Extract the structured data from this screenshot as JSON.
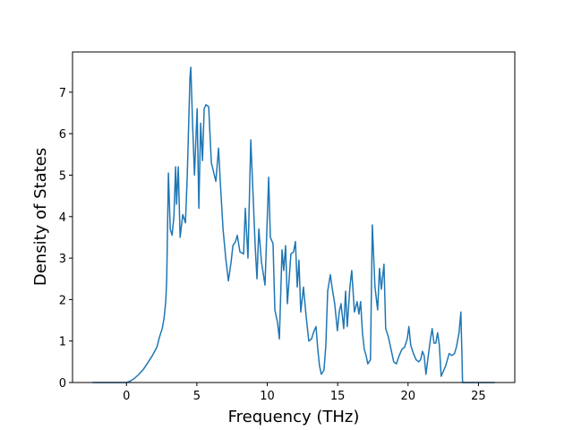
{
  "chart_data": {
    "type": "line",
    "xlabel": "Frequency (THz)",
    "ylabel": "Density of States",
    "x": [
      -2.41,
      0,
      0.25,
      0.57,
      0.89,
      1.21,
      1.52,
      1.84,
      2.16,
      2.35,
      2.54,
      2.67,
      2.79,
      2.86,
      2.98,
      3.11,
      3.24,
      3.37,
      3.49,
      3.56,
      3.68,
      3.81,
      4.0,
      4.19,
      4.32,
      4.51,
      4.57,
      4.7,
      4.83,
      5.02,
      5.14,
      5.27,
      5.4,
      5.52,
      5.65,
      5.84,
      6.03,
      6.1,
      6.35,
      6.54,
      6.67,
      6.86,
      7.05,
      7.24,
      7.43,
      7.56,
      7.75,
      7.87,
      8.06,
      8.32,
      8.44,
      8.63,
      8.83,
      9.02,
      9.14,
      9.27,
      9.4,
      9.59,
      9.84,
      10.1,
      10.22,
      10.41,
      10.54,
      10.73,
      10.86,
      11.05,
      11.17,
      11.3,
      11.43,
      11.68,
      11.87,
      12.0,
      12.13,
      12.25,
      12.38,
      12.57,
      12.76,
      12.95,
      13.14,
      13.33,
      13.46,
      13.59,
      13.71,
      13.84,
      14.03,
      14.16,
      14.29,
      14.48,
      14.6,
      14.79,
      14.98,
      15.11,
      15.24,
      15.43,
      15.56,
      15.68,
      15.87,
      16.0,
      16.19,
      16.38,
      16.51,
      16.63,
      16.76,
      16.89,
      17.02,
      17.14,
      17.33,
      17.46,
      17.65,
      17.84,
      17.97,
      18.1,
      18.29,
      18.41,
      18.6,
      18.79,
      18.98,
      19.17,
      19.37,
      19.56,
      19.75,
      19.94,
      20.06,
      20.19,
      20.38,
      20.57,
      20.76,
      20.89,
      21.02,
      21.14,
      21.27,
      21.4,
      21.59,
      21.71,
      21.84,
      21.97,
      22.1,
      22.22,
      22.35,
      22.54,
      22.67,
      22.92,
      23.11,
      23.3,
      23.43,
      23.62,
      23.75,
      23.81,
      23.87,
      26.16
    ],
    "series": [
      {
        "color": "#1f77b4",
        "values": [
          0,
          0,
          0.03,
          0.1,
          0.2,
          0.32,
          0.48,
          0.65,
          0.85,
          1.1,
          1.3,
          1.55,
          1.95,
          2.5,
          5.05,
          3.7,
          3.55,
          4.0,
          5.2,
          4.3,
          5.2,
          3.5,
          4.05,
          3.85,
          5.0,
          7.35,
          7.6,
          6.2,
          5.0,
          6.6,
          4.2,
          6.25,
          5.35,
          6.6,
          6.7,
          6.65,
          5.3,
          5.2,
          4.85,
          5.65,
          4.8,
          3.7,
          3.0,
          2.45,
          2.9,
          3.3,
          3.4,
          3.55,
          3.15,
          3.1,
          4.2,
          3.0,
          5.85,
          4.3,
          3.3,
          2.5,
          3.7,
          2.9,
          2.35,
          4.95,
          3.5,
          3.35,
          1.75,
          1.45,
          1.05,
          3.2,
          2.7,
          3.3,
          1.9,
          3.1,
          3.15,
          3.4,
          2.3,
          2.95,
          1.7,
          2.3,
          1.6,
          1.0,
          1.05,
          1.25,
          1.35,
          0.8,
          0.4,
          0.2,
          0.3,
          0.9,
          2.2,
          2.6,
          2.3,
          1.9,
          1.25,
          1.7,
          1.9,
          1.3,
          2.2,
          1.35,
          2.3,
          2.7,
          1.7,
          1.95,
          1.65,
          1.95,
          1.2,
          0.8,
          0.65,
          0.45,
          0.55,
          3.8,
          2.3,
          1.75,
          2.75,
          2.25,
          2.85,
          1.3,
          1.1,
          0.8,
          0.5,
          0.45,
          0.65,
          0.8,
          0.85,
          1.05,
          1.35,
          0.9,
          0.7,
          0.55,
          0.5,
          0.55,
          0.75,
          0.65,
          0.2,
          0.55,
          1.05,
          1.3,
          0.95,
          0.95,
          1.2,
          0.9,
          0.15,
          0.3,
          0.4,
          0.7,
          0.65,
          0.7,
          0.85,
          1.2,
          1.7,
          0.9,
          0,
          0
        ]
      }
    ],
    "xlim": [
      -3.83,
      27.58
    ],
    "ylim": [
      0,
      7.97
    ],
    "xticks": [
      0,
      5,
      10,
      15,
      20,
      25
    ],
    "yticks": [
      0,
      1,
      2,
      3,
      4,
      5,
      6,
      7
    ]
  }
}
